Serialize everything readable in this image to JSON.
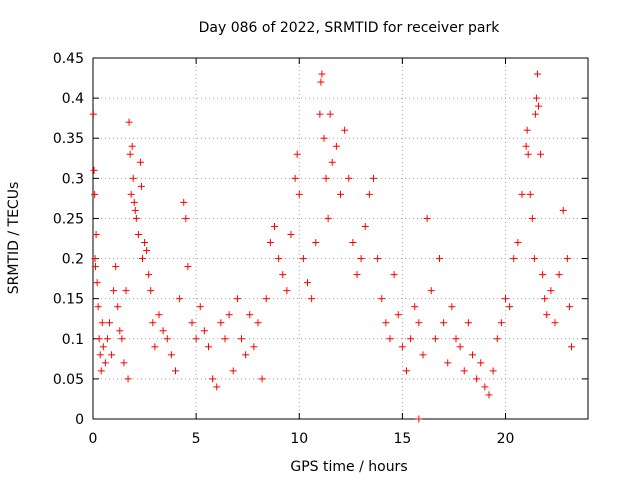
{
  "chart_data": {
    "type": "scatter",
    "title": "Day 086 of 2022, SRMTID for receiver park",
    "xlabel": "GPS time / hours",
    "ylabel": "SRMTID / TECUs",
    "xlim": [
      0,
      24
    ],
    "ylim": [
      0,
      0.45
    ],
    "x_ticks": [
      0,
      5,
      10,
      15,
      20
    ],
    "y_ticks": [
      0,
      0.05,
      0.1,
      0.15,
      0.2,
      0.25,
      0.3,
      0.35,
      0.4,
      0.45
    ],
    "x_tick_labels": [
      "0",
      "5",
      "10",
      "15",
      "20"
    ],
    "y_tick_labels": [
      "0",
      "0.05",
      "0.1",
      "0.15",
      "0.2",
      "0.25",
      "0.3",
      "0.35",
      "0.4",
      "0.45"
    ],
    "grid": true,
    "marker": "plus",
    "series_color": "#ff0000",
    "series": [
      {
        "name": "SRMTID",
        "points": [
          [
            0.02,
            0.38
          ],
          [
            0.05,
            0.31
          ],
          [
            0.08,
            0.28
          ],
          [
            0.1,
            0.2
          ],
          [
            0.12,
            0.19
          ],
          [
            0.15,
            0.23
          ],
          [
            0.2,
            0.17
          ],
          [
            0.25,
            0.14
          ],
          [
            0.3,
            0.1
          ],
          [
            0.35,
            0.08
          ],
          [
            0.4,
            0.06
          ],
          [
            0.45,
            0.12
          ],
          [
            0.5,
            0.09
          ],
          [
            0.6,
            0.07
          ],
          [
            0.7,
            0.1
          ],
          [
            0.8,
            0.12
          ],
          [
            0.9,
            0.08
          ],
          [
            1.0,
            0.16
          ],
          [
            1.1,
            0.19
          ],
          [
            1.2,
            0.14
          ],
          [
            1.3,
            0.11
          ],
          [
            1.4,
            0.1
          ],
          [
            1.5,
            0.07
          ],
          [
            1.6,
            0.16
          ],
          [
            1.7,
            0.05
          ],
          [
            1.75,
            0.37
          ],
          [
            1.8,
            0.33
          ],
          [
            1.85,
            0.28
          ],
          [
            1.9,
            0.34
          ],
          [
            1.95,
            0.3
          ],
          [
            2.0,
            0.27
          ],
          [
            2.05,
            0.26
          ],
          [
            2.1,
            0.25
          ],
          [
            2.2,
            0.23
          ],
          [
            2.3,
            0.32
          ],
          [
            2.35,
            0.29
          ],
          [
            2.4,
            0.2
          ],
          [
            2.5,
            0.22
          ],
          [
            2.6,
            0.21
          ],
          [
            2.7,
            0.18
          ],
          [
            2.8,
            0.16
          ],
          [
            2.9,
            0.12
          ],
          [
            3.0,
            0.09
          ],
          [
            3.2,
            0.13
          ],
          [
            3.4,
            0.11
          ],
          [
            3.6,
            0.1
          ],
          [
            3.8,
            0.08
          ],
          [
            4.0,
            0.06
          ],
          [
            4.2,
            0.15
          ],
          [
            4.4,
            0.27
          ],
          [
            4.5,
            0.25
          ],
          [
            4.6,
            0.19
          ],
          [
            4.8,
            0.12
          ],
          [
            5.0,
            0.1
          ],
          [
            5.2,
            0.14
          ],
          [
            5.4,
            0.11
          ],
          [
            5.6,
            0.09
          ],
          [
            5.8,
            0.05
          ],
          [
            6.0,
            0.04
          ],
          [
            6.2,
            0.12
          ],
          [
            6.4,
            0.1
          ],
          [
            6.6,
            0.13
          ],
          [
            6.8,
            0.06
          ],
          [
            7.0,
            0.15
          ],
          [
            7.2,
            0.1
          ],
          [
            7.4,
            0.08
          ],
          [
            7.6,
            0.13
          ],
          [
            7.8,
            0.09
          ],
          [
            8.0,
            0.12
          ],
          [
            8.2,
            0.05
          ],
          [
            8.4,
            0.15
          ],
          [
            8.6,
            0.22
          ],
          [
            8.8,
            0.24
          ],
          [
            9.0,
            0.2
          ],
          [
            9.2,
            0.18
          ],
          [
            9.4,
            0.16
          ],
          [
            9.6,
            0.23
          ],
          [
            9.8,
            0.3
          ],
          [
            9.9,
            0.33
          ],
          [
            10.0,
            0.28
          ],
          [
            10.2,
            0.2
          ],
          [
            10.4,
            0.17
          ],
          [
            10.6,
            0.15
          ],
          [
            10.8,
            0.22
          ],
          [
            11.0,
            0.38
          ],
          [
            11.05,
            0.42
          ],
          [
            11.1,
            0.43
          ],
          [
            11.2,
            0.35
          ],
          [
            11.3,
            0.3
          ],
          [
            11.4,
            0.25
          ],
          [
            11.5,
            0.38
          ],
          [
            11.6,
            0.32
          ],
          [
            11.8,
            0.34
          ],
          [
            12.0,
            0.28
          ],
          [
            12.2,
            0.36
          ],
          [
            12.4,
            0.3
          ],
          [
            12.6,
            0.22
          ],
          [
            12.8,
            0.18
          ],
          [
            13.0,
            0.2
          ],
          [
            13.2,
            0.24
          ],
          [
            13.4,
            0.28
          ],
          [
            13.6,
            0.3
          ],
          [
            13.8,
            0.2
          ],
          [
            14.0,
            0.15
          ],
          [
            14.2,
            0.12
          ],
          [
            14.4,
            0.1
          ],
          [
            14.6,
            0.18
          ],
          [
            14.8,
            0.13
          ],
          [
            15.0,
            0.09
          ],
          [
            15.2,
            0.06
          ],
          [
            15.4,
            0.1
          ],
          [
            15.6,
            0.14
          ],
          [
            15.8,
            0.12
          ],
          [
            16.0,
            0.08
          ],
          [
            16.2,
            0.25
          ],
          [
            16.4,
            0.16
          ],
          [
            16.6,
            0.1
          ],
          [
            16.8,
            0.2
          ],
          [
            17.0,
            0.12
          ],
          [
            17.2,
            0.07
          ],
          [
            17.4,
            0.14
          ],
          [
            17.6,
            0.1
          ],
          [
            17.8,
            0.09
          ],
          [
            18.0,
            0.06
          ],
          [
            18.2,
            0.12
          ],
          [
            18.4,
            0.08
          ],
          [
            18.6,
            0.05
          ],
          [
            18.8,
            0.07
          ],
          [
            19.0,
            0.04
          ],
          [
            19.2,
            0.03
          ],
          [
            19.4,
            0.06
          ],
          [
            19.6,
            0.1
          ],
          [
            19.8,
            0.12
          ],
          [
            20.0,
            0.15
          ],
          [
            20.2,
            0.14
          ],
          [
            20.4,
            0.2
          ],
          [
            20.6,
            0.22
          ],
          [
            20.8,
            0.28
          ],
          [
            21.0,
            0.34
          ],
          [
            21.05,
            0.36
          ],
          [
            21.1,
            0.33
          ],
          [
            21.2,
            0.28
          ],
          [
            21.3,
            0.25
          ],
          [
            21.4,
            0.2
          ],
          [
            21.45,
            0.38
          ],
          [
            21.5,
            0.4
          ],
          [
            21.55,
            0.43
          ],
          [
            21.6,
            0.39
          ],
          [
            21.7,
            0.33
          ],
          [
            21.8,
            0.18
          ],
          [
            21.9,
            0.15
          ],
          [
            22.0,
            0.13
          ],
          [
            22.2,
            0.16
          ],
          [
            22.4,
            0.12
          ],
          [
            22.6,
            0.18
          ],
          [
            22.8,
            0.26
          ],
          [
            23.0,
            0.2
          ],
          [
            23.1,
            0.14
          ],
          [
            23.2,
            0.09
          ],
          [
            15.8,
            0.0
          ]
        ]
      }
    ]
  }
}
